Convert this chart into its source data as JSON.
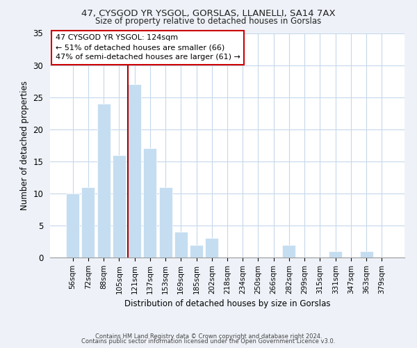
{
  "title_line1": "47, CYSGOD YR YSGOL, GORSLAS, LLANELLI, SA14 7AX",
  "title_line2": "Size of property relative to detached houses in Gorslas",
  "xlabel": "Distribution of detached houses by size in Gorslas",
  "ylabel": "Number of detached properties",
  "bar_labels": [
    "56sqm",
    "72sqm",
    "88sqm",
    "105sqm",
    "121sqm",
    "137sqm",
    "153sqm",
    "169sqm",
    "185sqm",
    "202sqm",
    "218sqm",
    "234sqm",
    "250sqm",
    "266sqm",
    "282sqm",
    "299sqm",
    "315sqm",
    "331sqm",
    "347sqm",
    "363sqm",
    "379sqm"
  ],
  "bar_values": [
    10,
    11,
    24,
    16,
    27,
    17,
    11,
    4,
    2,
    3,
    0,
    0,
    0,
    0,
    2,
    0,
    0,
    1,
    0,
    1,
    0
  ],
  "bar_color_normal": "#c5ddf0",
  "highlight_index": 4,
  "vline_color": "#aa0000",
  "ylim": [
    0,
    35
  ],
  "yticks": [
    0,
    5,
    10,
    15,
    20,
    25,
    30,
    35
  ],
  "annotation_text_line1": "47 CYSGOD YR YSGOL: 124sqm",
  "annotation_text_line2": "← 51% of detached houses are smaller (66)",
  "annotation_text_line3": "47% of semi-detached houses are larger (61) →",
  "footer_line1": "Contains HM Land Registry data © Crown copyright and database right 2024.",
  "footer_line2": "Contains public sector information licensed under the Open Government Licence v3.0.",
  "background_color": "#eef2f8",
  "plot_bg_color": "#ffffff"
}
